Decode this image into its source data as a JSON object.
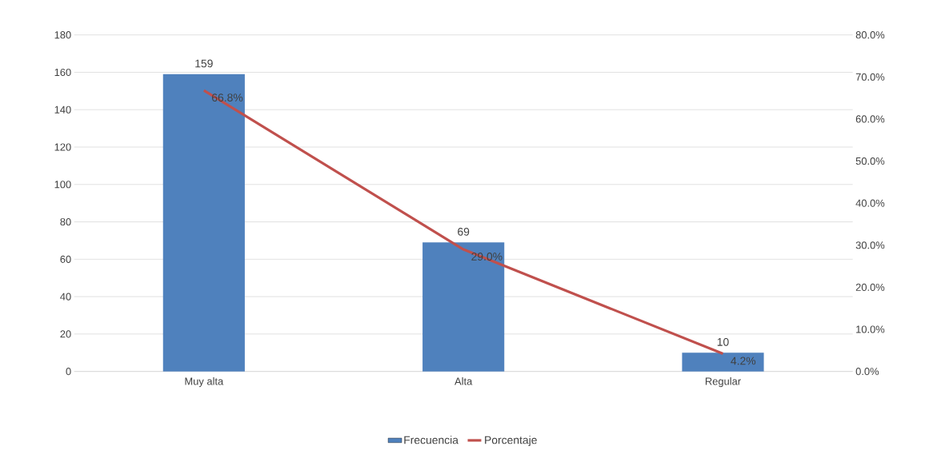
{
  "chart_data": {
    "type": "bar",
    "categories": [
      "Muy alta",
      "Alta",
      "Regular"
    ],
    "series": [
      {
        "name": "Frecuencia",
        "color": "#4f81bd",
        "values": [
          159,
          69,
          10
        ],
        "value_labels": [
          "159",
          "69",
          "10"
        ]
      },
      {
        "name": "Porcentaje",
        "type": "line",
        "axis": "y2",
        "color": "#c0504d",
        "values": [
          66.8,
          29.0,
          4.2
        ],
        "value_labels": [
          "66.8%",
          "29.0%",
          "4.2%"
        ]
      }
    ],
    "ylim": [
      0,
      180
    ],
    "yticks": [
      0,
      20,
      40,
      60,
      80,
      100,
      120,
      140,
      160,
      180
    ],
    "y2lim": [
      0,
      80
    ],
    "y2ticks": [
      {
        "value": 0,
        "label": "0.0%"
      },
      {
        "value": 10,
        "label": "10.0%"
      },
      {
        "value": 20,
        "label": "20.0%"
      },
      {
        "value": 30,
        "label": "30.0%"
      },
      {
        "value": 40,
        "label": "40.0%"
      },
      {
        "value": 50,
        "label": "50.0%"
      },
      {
        "value": 60,
        "label": "60.0%"
      },
      {
        "value": 70,
        "label": "70.0%"
      },
      {
        "value": 80,
        "label": "80.0%"
      }
    ],
    "grid": "y",
    "legend": "bottom",
    "marker": "none",
    "line_style": "solid"
  }
}
